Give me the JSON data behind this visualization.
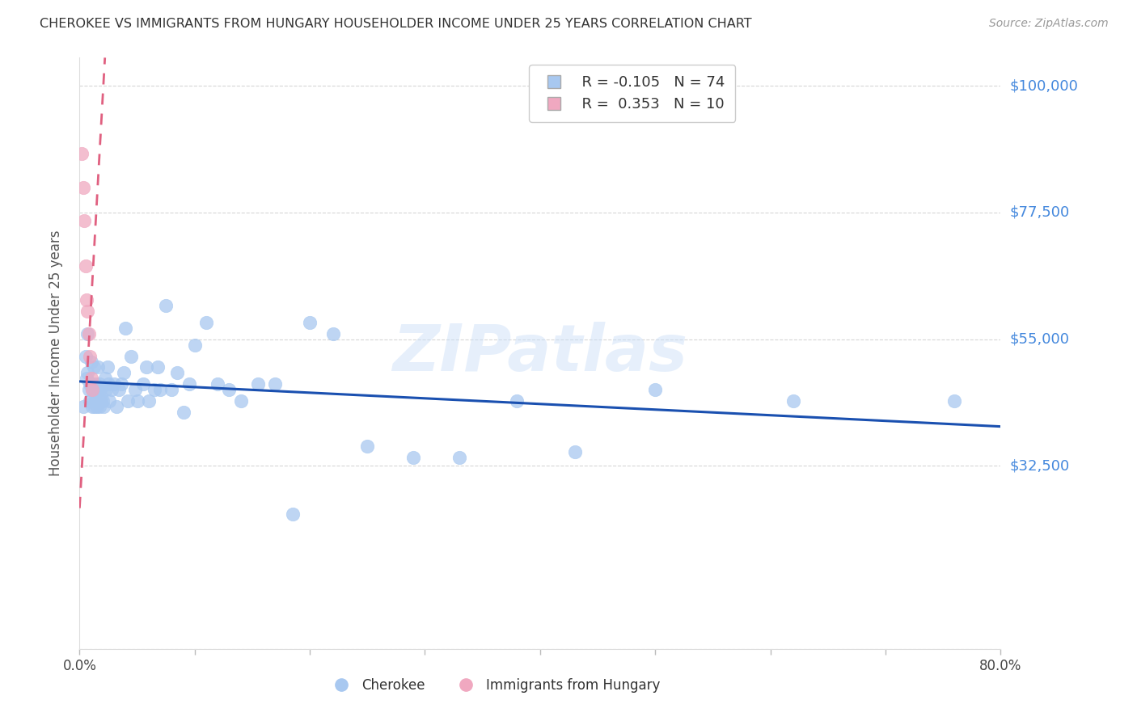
{
  "title": "CHEROKEE VS IMMIGRANTS FROM HUNGARY HOUSEHOLDER INCOME UNDER 25 YEARS CORRELATION CHART",
  "source": "Source: ZipAtlas.com",
  "ylabel": "Householder Income Under 25 years",
  "yticks": [
    0,
    32500,
    55000,
    77500,
    100000
  ],
  "ytick_labels": [
    "",
    "$32,500",
    "$55,000",
    "$77,500",
    "$100,000"
  ],
  "ylim": [
    0,
    105000
  ],
  "xlim": [
    0.0,
    0.8
  ],
  "watermark": "ZIPatlas",
  "legend_cherokee_R": "-0.105",
  "legend_cherokee_N": "74",
  "legend_hungary_R": "0.353",
  "legend_hungary_N": "10",
  "cherokee_color": "#a8c8f0",
  "cherokee_edge_color": "#7aaad8",
  "cherokee_line_color": "#1a50b0",
  "hungary_color": "#f0a8c0",
  "hungary_edge_color": "#d87898",
  "hungary_line_color": "#e06080",
  "background_color": "#ffffff",
  "grid_color": "#cccccc",
  "title_color": "#333333",
  "axis_label_color": "#4488dd",
  "cherokee_x": [
    0.003,
    0.005,
    0.006,
    0.007,
    0.007,
    0.008,
    0.009,
    0.009,
    0.01,
    0.01,
    0.011,
    0.011,
    0.012,
    0.012,
    0.013,
    0.013,
    0.014,
    0.014,
    0.015,
    0.015,
    0.016,
    0.016,
    0.017,
    0.017,
    0.018,
    0.018,
    0.019,
    0.02,
    0.021,
    0.022,
    0.023,
    0.024,
    0.025,
    0.026,
    0.028,
    0.03,
    0.032,
    0.034,
    0.036,
    0.038,
    0.04,
    0.042,
    0.045,
    0.048,
    0.05,
    0.055,
    0.058,
    0.06,
    0.065,
    0.068,
    0.07,
    0.075,
    0.08,
    0.085,
    0.09,
    0.095,
    0.1,
    0.11,
    0.12,
    0.13,
    0.14,
    0.155,
    0.17,
    0.185,
    0.2,
    0.22,
    0.25,
    0.29,
    0.33,
    0.38,
    0.43,
    0.5,
    0.62,
    0.76
  ],
  "cherokee_y": [
    43000,
    52000,
    48000,
    56000,
    49000,
    46000,
    47000,
    44000,
    51000,
    47000,
    46000,
    43000,
    50000,
    44000,
    46000,
    43000,
    47000,
    44000,
    46000,
    43000,
    50000,
    46000,
    47000,
    43000,
    46000,
    45000,
    44000,
    44000,
    43000,
    48000,
    46000,
    50000,
    47000,
    44000,
    46000,
    47000,
    43000,
    46000,
    47000,
    49000,
    57000,
    44000,
    52000,
    46000,
    44000,
    47000,
    50000,
    44000,
    46000,
    50000,
    46000,
    61000,
    46000,
    49000,
    42000,
    47000,
    54000,
    58000,
    47000,
    46000,
    44000,
    47000,
    47000,
    24000,
    58000,
    56000,
    36000,
    34000,
    34000,
    44000,
    35000,
    46000,
    44000,
    44000
  ],
  "hungary_x": [
    0.002,
    0.003,
    0.004,
    0.005,
    0.006,
    0.007,
    0.008,
    0.009,
    0.01,
    0.011
  ],
  "hungary_y": [
    88000,
    82000,
    76000,
    68000,
    62000,
    60000,
    56000,
    52000,
    48000,
    46000
  ],
  "cherokee_trendline_x": [
    0.0,
    0.8
  ],
  "cherokee_trendline_y": [
    47500,
    39500
  ],
  "hungary_trendline_x": [
    0.0,
    0.022
  ],
  "hungary_trendline_y": [
    25000,
    105000
  ]
}
